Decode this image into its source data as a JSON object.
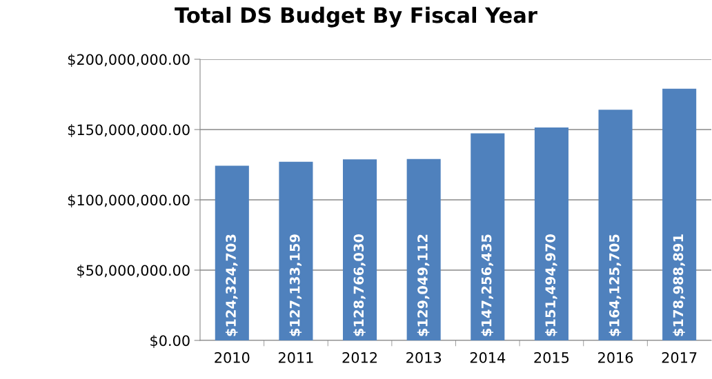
{
  "chart_data": {
    "type": "bar",
    "title": "Total DS Budget By Fiscal Year",
    "categories": [
      "2010",
      "2011",
      "2012",
      "2013",
      "2014",
      "2015",
      "2016",
      "2017"
    ],
    "values": [
      124324703,
      127133159,
      128766030,
      129049112,
      147256435,
      151494970,
      164125705,
      178988891
    ],
    "value_labels": [
      "$124,324,703",
      "$127,133,159",
      "$128,766,030",
      "$129,049,112",
      "$147,256,435",
      "$151,494,970",
      "$164,125,705",
      "$178,988,891"
    ],
    "color": "#4f81bd",
    "ylim": [
      0,
      200000000
    ],
    "yticks": [
      {
        "value": 0,
        "label": "$0.00"
      },
      {
        "value": 50000000,
        "label": "$50,000,000.00"
      },
      {
        "value": 100000000,
        "label": "$100,000,000.00"
      },
      {
        "value": 150000000,
        "label": "$150,000,000.00"
      },
      {
        "value": 200000000,
        "label": "$200,000,000.00"
      }
    ],
    "grid": "y",
    "legend": false
  }
}
